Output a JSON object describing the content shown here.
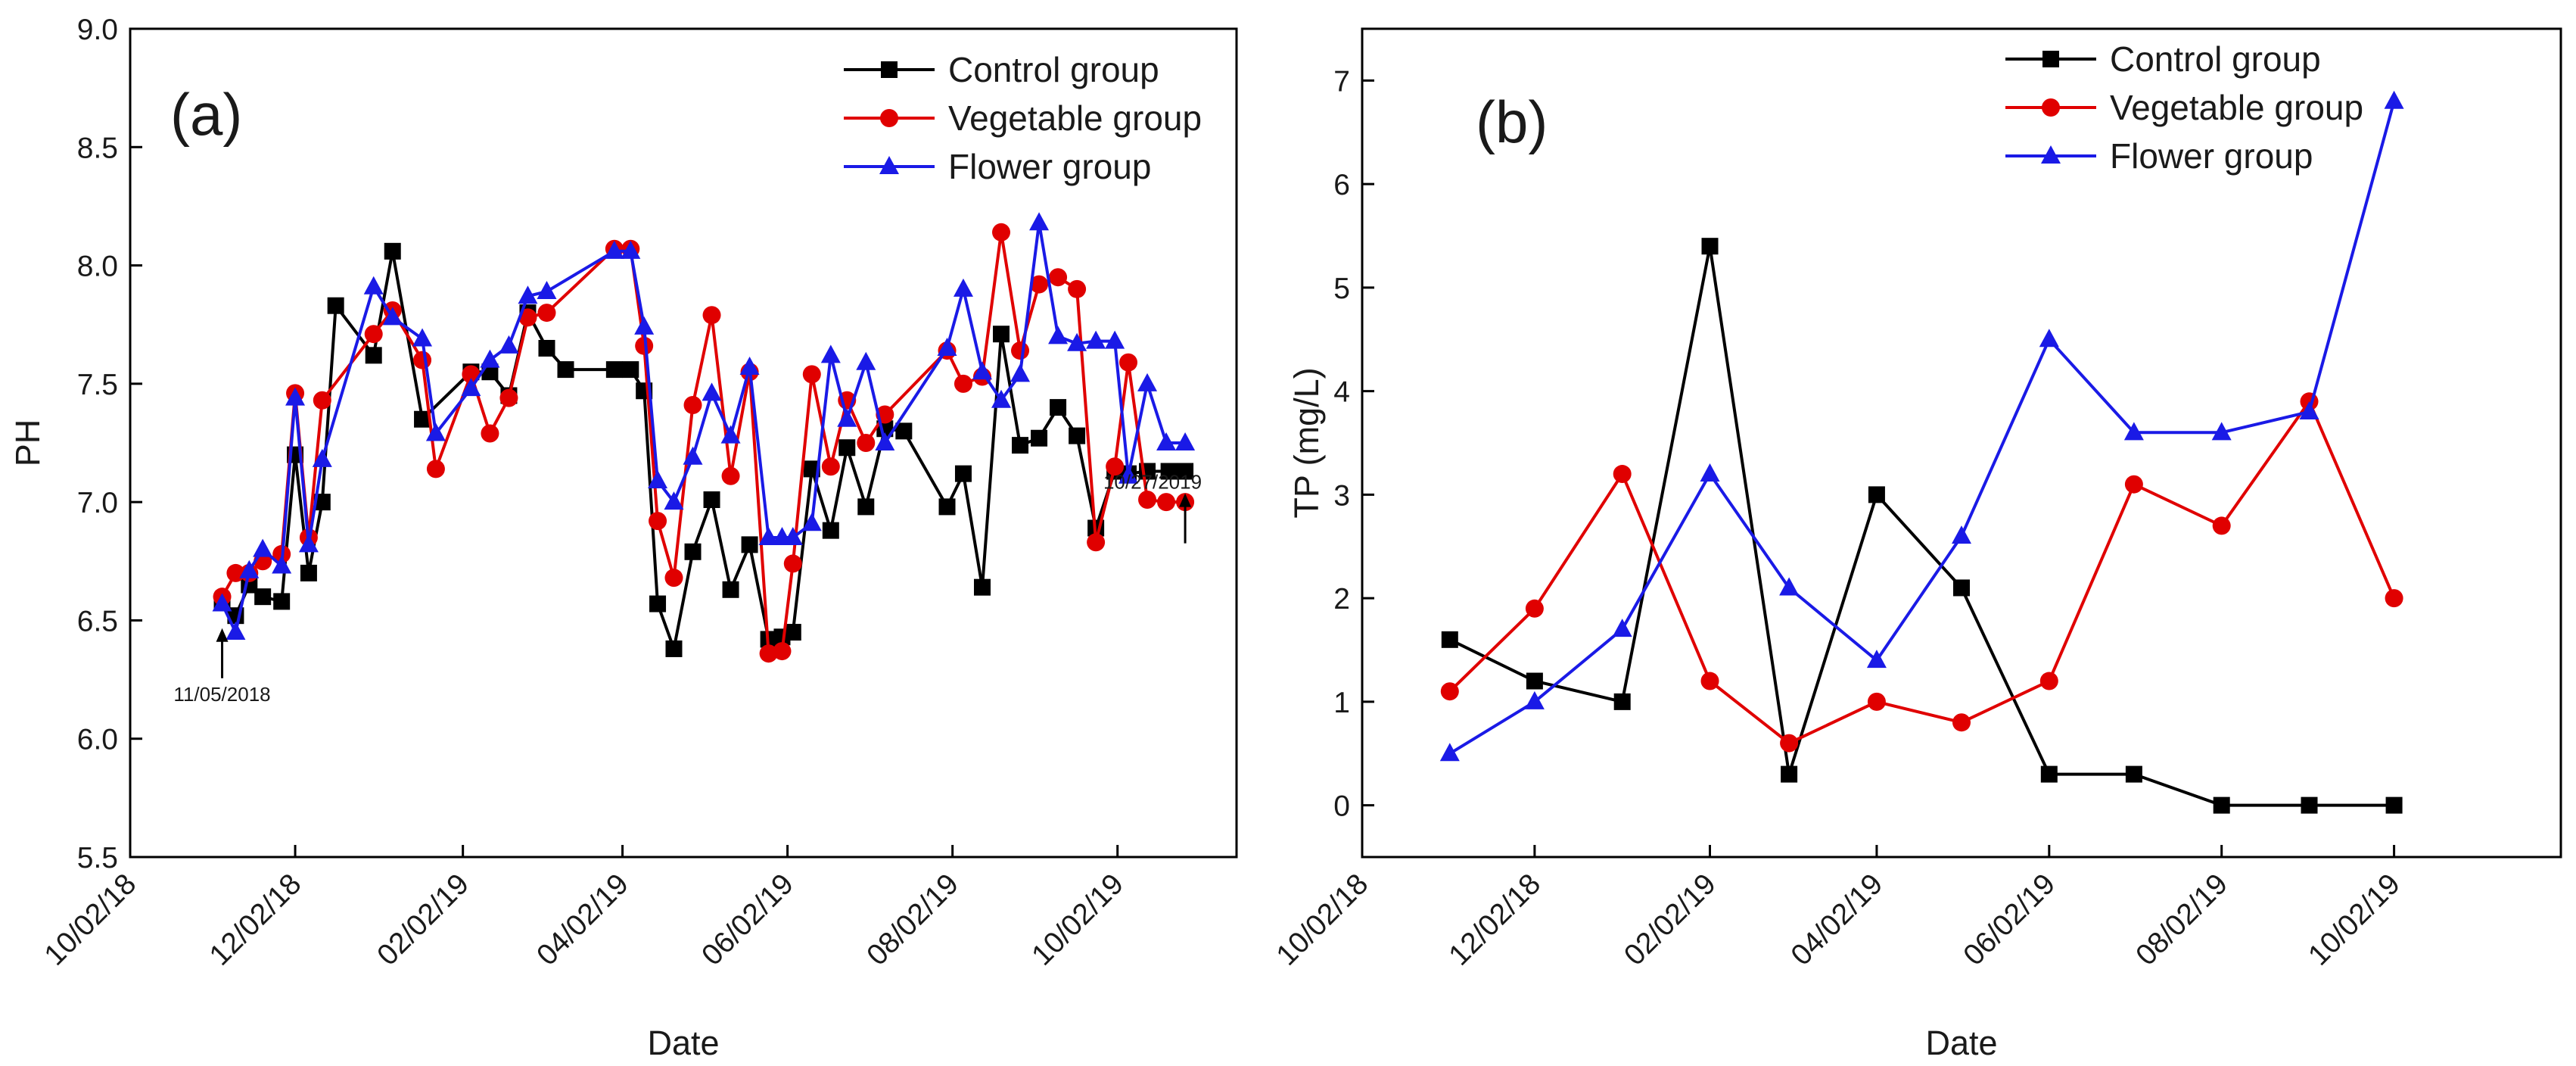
{
  "chart_data": [
    {
      "type": "line",
      "panel_label": "(a)",
      "xlabel": "Date",
      "ylabel": "PH",
      "x_range": [
        "2018-10-02",
        "2019-11-15"
      ],
      "ylim": [
        5.5,
        9.0
      ],
      "yticks": [
        "5.5",
        "6.0",
        "6.5",
        "7.0",
        "7.5",
        "8.0",
        "8.5",
        "9.0"
      ],
      "xticks": [
        "10/02/18",
        "12/02/18",
        "02/02/19",
        "04/02/19",
        "06/02/19",
        "08/02/19",
        "10/02/19"
      ],
      "legend_position": "top-right",
      "grid": false,
      "annotations": [
        {
          "text": "11/05/2018",
          "date": "2018-11-05",
          "value": 6.55
        },
        {
          "text": "10/27/2019",
          "date": "2019-10-27",
          "value": 7.12
        }
      ],
      "series": [
        {
          "name": "Control group",
          "color": "#000000",
          "marker": "square",
          "x": [
            "2018-11-05",
            "2018-11-10",
            "2018-11-15",
            "2018-11-20",
            "2018-11-27",
            "2018-12-02",
            "2018-12-07",
            "2018-12-12",
            "2018-12-17",
            "2018-12-31",
            "2019-01-07",
            "2019-01-18",
            "2019-02-05",
            "2019-02-12",
            "2019-02-19",
            "2019-02-26",
            "2019-03-05",
            "2019-03-12",
            "2019-03-30",
            "2019-04-05",
            "2019-04-10",
            "2019-04-15",
            "2019-04-21",
            "2019-04-28",
            "2019-05-05",
            "2019-05-12",
            "2019-05-19",
            "2019-05-26",
            "2019-05-31",
            "2019-06-04",
            "2019-06-11",
            "2019-06-18",
            "2019-06-24",
            "2019-07-01",
            "2019-07-08",
            "2019-07-15",
            "2019-07-31",
            "2019-08-06",
            "2019-08-13",
            "2019-08-20",
            "2019-08-27",
            "2019-09-03",
            "2019-09-10",
            "2019-09-17",
            "2019-09-24",
            "2019-10-01",
            "2019-10-06",
            "2019-10-13",
            "2019-10-21",
            "2019-10-27"
          ],
          "y": [
            6.58,
            6.52,
            6.65,
            6.6,
            6.58,
            7.2,
            6.7,
            7.0,
            7.83,
            7.62,
            8.06,
            7.35,
            7.55,
            7.55,
            7.45,
            7.8,
            7.65,
            7.56,
            7.56,
            7.56,
            7.47,
            6.57,
            6.38,
            6.79,
            7.01,
            6.63,
            6.82,
            6.42,
            6.43,
            6.45,
            7.14,
            6.88,
            7.23,
            6.98,
            7.31,
            7.3,
            6.98,
            7.12,
            6.64,
            7.71,
            7.24,
            7.27,
            7.4,
            7.28,
            6.89,
            7.13,
            7.12,
            7.13,
            7.13,
            7.13
          ]
        },
        {
          "name": "Vegetable group",
          "color": "#e00000",
          "marker": "circle",
          "x": [
            "2018-11-05",
            "2018-11-10",
            "2018-11-15",
            "2018-11-20",
            "2018-11-27",
            "2018-12-02",
            "2018-12-07",
            "2018-12-12",
            "2018-12-31",
            "2019-01-07",
            "2019-01-18",
            "2019-01-23",
            "2019-02-05",
            "2019-02-12",
            "2019-02-19",
            "2019-02-26",
            "2019-03-05",
            "2019-03-30",
            "2019-04-05",
            "2019-04-10",
            "2019-04-15",
            "2019-04-21",
            "2019-04-28",
            "2019-05-05",
            "2019-05-12",
            "2019-05-19",
            "2019-05-26",
            "2019-05-31",
            "2019-06-04",
            "2019-06-11",
            "2019-06-18",
            "2019-06-24",
            "2019-07-01",
            "2019-07-08",
            "2019-07-31",
            "2019-08-06",
            "2019-08-13",
            "2019-08-20",
            "2019-08-27",
            "2019-09-03",
            "2019-09-10",
            "2019-09-17",
            "2019-09-24",
            "2019-10-01",
            "2019-10-06",
            "2019-10-13",
            "2019-10-20",
            "2019-10-27"
          ],
          "y": [
            6.6,
            6.7,
            6.7,
            6.75,
            6.78,
            7.46,
            6.85,
            7.43,
            7.71,
            7.81,
            7.6,
            7.14,
            7.54,
            7.29,
            7.44,
            7.78,
            7.8,
            8.07,
            8.07,
            7.66,
            6.92,
            6.68,
            7.41,
            7.79,
            7.11,
            7.55,
            6.36,
            6.37,
            6.74,
            7.54,
            7.15,
            7.43,
            7.25,
            7.37,
            7.64,
            7.5,
            7.53,
            8.14,
            7.64,
            7.92,
            7.95,
            7.9,
            6.83,
            7.15,
            7.59,
            7.01,
            7.0,
            7.0
          ]
        },
        {
          "name": "Flower group",
          "color": "#1a1ae6",
          "marker": "triangle",
          "x": [
            "2018-11-05",
            "2018-11-10",
            "2018-11-15",
            "2018-11-20",
            "2018-11-27",
            "2018-12-02",
            "2018-12-07",
            "2018-12-12",
            "2018-12-31",
            "2019-01-07",
            "2019-01-18",
            "2019-01-23",
            "2019-02-05",
            "2019-02-12",
            "2019-02-19",
            "2019-02-26",
            "2019-03-05",
            "2019-03-30",
            "2019-04-05",
            "2019-04-10",
            "2019-04-15",
            "2019-04-21",
            "2019-04-28",
            "2019-05-05",
            "2019-05-12",
            "2019-05-19",
            "2019-05-26",
            "2019-05-31",
            "2019-06-04",
            "2019-06-11",
            "2019-06-18",
            "2019-06-24",
            "2019-07-01",
            "2019-07-08",
            "2019-07-31",
            "2019-08-06",
            "2019-08-13",
            "2019-08-20",
            "2019-08-27",
            "2019-09-03",
            "2019-09-10",
            "2019-09-17",
            "2019-09-24",
            "2019-10-01",
            "2019-10-06",
            "2019-10-13",
            "2019-10-20",
            "2019-10-27"
          ],
          "y": [
            6.57,
            6.45,
            6.71,
            6.8,
            6.73,
            7.44,
            6.82,
            7.18,
            7.91,
            7.78,
            7.69,
            7.29,
            7.48,
            7.6,
            7.66,
            7.87,
            7.89,
            8.06,
            8.06,
            7.74,
            7.09,
            7.0,
            7.19,
            7.46,
            7.28,
            7.57,
            6.85,
            6.85,
            6.85,
            6.91,
            7.62,
            7.35,
            7.59,
            7.25,
            7.65,
            7.9,
            7.55,
            7.43,
            7.54,
            8.18,
            7.7,
            7.67,
            7.68,
            7.68,
            7.11,
            7.5,
            7.25,
            7.25
          ]
        }
      ]
    },
    {
      "type": "line",
      "panel_label": "(b)",
      "xlabel": "Date",
      "ylabel": "TP (mg/L)",
      "x_range": [
        "2018-10-02",
        "2019-11-30"
      ],
      "ylim": [
        -0.5,
        7.5
      ],
      "yticks": [
        "0",
        "1",
        "2",
        "3",
        "4",
        "5",
        "6",
        "7"
      ],
      "xticks": [
        "10/02/18",
        "12/02/18",
        "02/02/19",
        "04/02/19",
        "06/02/19",
        "08/02/19",
        "10/02/19"
      ],
      "legend_position": "top-right",
      "grid": false,
      "series": [
        {
          "name": "Control group",
          "color": "#000000",
          "marker": "square",
          "x": [
            "2018-11-02",
            "2018-12-02",
            "2019-01-02",
            "2019-02-02",
            "2019-03-02",
            "2019-04-02",
            "2019-05-02",
            "2019-06-02",
            "2019-07-02",
            "2019-08-02",
            "2019-09-02",
            "2019-10-02"
          ],
          "y": [
            1.6,
            1.2,
            1.0,
            5.4,
            0.3,
            3.0,
            2.1,
            0.3,
            0.3,
            0.0,
            0.0,
            0.0
          ]
        },
        {
          "name": "Vegetable group",
          "color": "#e00000",
          "marker": "circle",
          "x": [
            "2018-11-02",
            "2018-12-02",
            "2019-01-02",
            "2019-02-02",
            "2019-03-02",
            "2019-04-02",
            "2019-05-02",
            "2019-06-02",
            "2019-07-02",
            "2019-08-02",
            "2019-09-02",
            "2019-10-02"
          ],
          "y": [
            1.1,
            1.9,
            3.2,
            1.2,
            0.6,
            1.0,
            0.8,
            1.2,
            3.1,
            2.7,
            3.9,
            2.0
          ]
        },
        {
          "name": "Flower group",
          "color": "#1a1ae6",
          "marker": "triangle",
          "x": [
            "2018-11-02",
            "2018-12-02",
            "2019-01-02",
            "2019-02-02",
            "2019-03-02",
            "2019-04-02",
            "2019-05-02",
            "2019-06-02",
            "2019-07-02",
            "2019-08-02",
            "2019-09-02",
            "2019-10-02"
          ],
          "y": [
            0.5,
            1.0,
            1.7,
            3.2,
            2.1,
            1.4,
            2.6,
            4.5,
            3.6,
            3.6,
            3.8,
            6.8
          ]
        }
      ]
    }
  ]
}
